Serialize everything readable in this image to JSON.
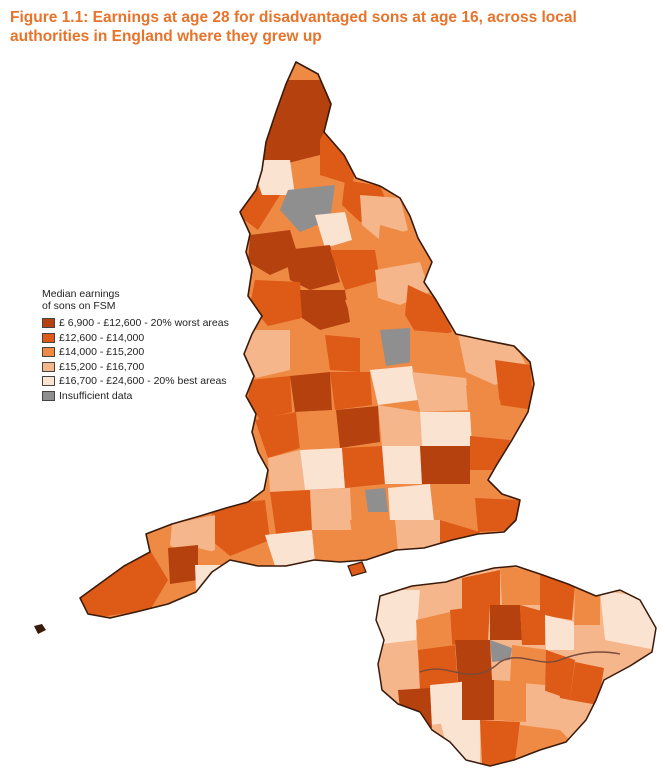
{
  "figure": {
    "title_line1": "Figure 1.1: Earnings at age 28 for disadvantaged sons at age 16, across local",
    "title_line2": "authorities in England where they grew up"
  },
  "legend": {
    "heading_line1": "Median earnings",
    "heading_line2": "of sons on FSM",
    "items": [
      {
        "label": "£ 6,900 - £12,600 - 20% worst areas",
        "color": "#b5410f"
      },
      {
        "label": "£12,600 - £14,000",
        "color": "#de5a17"
      },
      {
        "label": "£14,000 - £15,200",
        "color": "#ef8a45"
      },
      {
        "label": "£15,200 - £16,700",
        "color": "#f4b68a"
      },
      {
        "label": "£16,700 - £24,600 - 20% best areas",
        "color": "#fbe3d2"
      },
      {
        "label": "Insufficient data",
        "color": "#8f8f8f"
      }
    ]
  },
  "map": {
    "region": "England",
    "inset_region": "London",
    "outline_color": "#3a1a0a"
  }
}
